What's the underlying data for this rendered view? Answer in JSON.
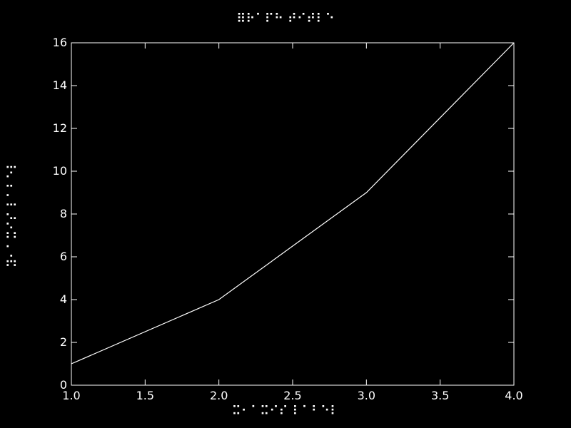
{
  "chart_data": {
    "type": "line",
    "title": "⠿⠗⠁⠏⠓ ⠞⠊⠞⠇⠑",
    "xlabel": "⠭⠂⠁⠭⠊⠎ ⠇⠁⠃⠑⠇",
    "ylabel": "⠽⠂⠁⠭⠊⠎ ⠇⠁⠃⠑⠇",
    "xlim": [
      1.0,
      4.0
    ],
    "ylim": [
      0,
      16
    ],
    "x_ticks": [
      1.0,
      1.5,
      2.0,
      2.5,
      3.0,
      3.5,
      4.0
    ],
    "y_ticks": [
      0,
      2,
      4,
      6,
      8,
      10,
      12,
      14,
      16
    ],
    "grid": false,
    "series": [
      {
        "x": [
          1,
          2,
          3,
          4
        ],
        "values": [
          1,
          4,
          9,
          16
        ]
      }
    ],
    "colors": {
      "background": "#000000",
      "line": "#ffffff",
      "axes": "#ffffff"
    }
  }
}
